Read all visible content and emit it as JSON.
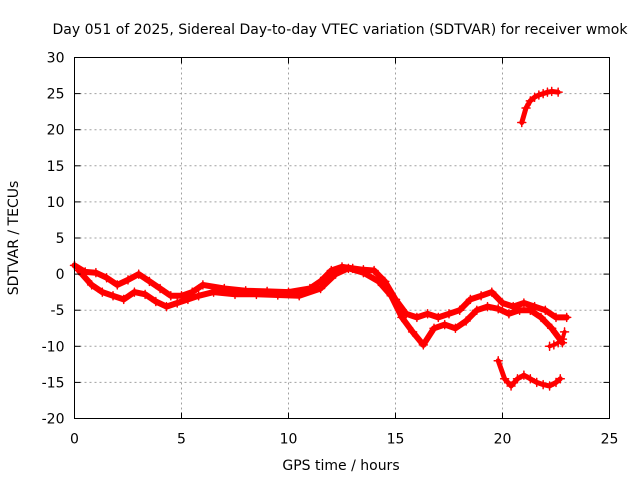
{
  "chart_data": {
    "type": "scatter",
    "title": "Day 051 of 2025, Sidereal Day-to-day VTEC variation (SDTVAR) for receiver wmok",
    "xlabel": "GPS time / hours",
    "ylabel": "SDTVAR / TECUs",
    "xlim": [
      0,
      25
    ],
    "ylim": [
      -20,
      30
    ],
    "xticks": [
      "0",
      "5",
      "10",
      "15",
      "20",
      "25"
    ],
    "yticks": [
      "-20",
      "-15",
      "-10",
      "-5",
      "0",
      "5",
      "10",
      "15",
      "20",
      "25",
      "30"
    ],
    "grid": true,
    "marker": "plus",
    "color": "#ff0000",
    "series": [
      {
        "name": "main-track-upper",
        "x": [
          0,
          0.5,
          1,
          1.5,
          2,
          2.5,
          3,
          3.5,
          4,
          4.5,
          5,
          5.5,
          6,
          7,
          8,
          9,
          10,
          11,
          11.5,
          12,
          12.5,
          13,
          13.5,
          14,
          14.5,
          15,
          15.5,
          16,
          16.5,
          17,
          17.5,
          18,
          18.5,
          19,
          19.5,
          20,
          20.5,
          21,
          21.5,
          22,
          22.5,
          23
        ],
        "y": [
          1.2,
          0.3,
          0.2,
          -0.5,
          -1.5,
          -0.8,
          0.0,
          -1.0,
          -2.0,
          -3.0,
          -3.0,
          -2.5,
          -1.5,
          -2.0,
          -2.3,
          -2.4,
          -2.5,
          -2.0,
          -1.0,
          0.5,
          1.0,
          0.8,
          0.6,
          0.5,
          -1.0,
          -3.5,
          -5.5,
          -6.0,
          -5.5,
          -6.0,
          -5.5,
          -5.0,
          -3.5,
          -3.0,
          -2.5,
          -4.0,
          -4.5,
          -4.0,
          -4.5,
          -5.0,
          -6.0,
          -6.0
        ]
      },
      {
        "name": "main-track-lower",
        "x": [
          0.2,
          0.8,
          1.3,
          1.8,
          2.3,
          2.8,
          3.3,
          3.8,
          4.3,
          4.8,
          5.3,
          5.8,
          6.5,
          7.5,
          8.5,
          9.5,
          10.5,
          11.5,
          12.2,
          12.8,
          13.5,
          14.2,
          14.8,
          15.3,
          15.8,
          16.3,
          16.8,
          17.3,
          17.8,
          18.3,
          18.8,
          19.3,
          19.8,
          20.3,
          20.8,
          21.3,
          21.8,
          22.3,
          22.8
        ],
        "y": [
          0.5,
          -1.5,
          -2.5,
          -3.0,
          -3.5,
          -2.5,
          -2.8,
          -3.8,
          -4.5,
          -4.0,
          -3.5,
          -3.0,
          -2.5,
          -2.8,
          -2.8,
          -2.9,
          -3.0,
          -2.0,
          0.0,
          0.8,
          0.2,
          -1.0,
          -3.0,
          -6.0,
          -8.0,
          -9.8,
          -7.5,
          -7.0,
          -7.5,
          -6.5,
          -5.0,
          -4.5,
          -4.8,
          -5.5,
          -5.0,
          -5.0,
          -6.0,
          -7.5,
          -9.5
        ]
      },
      {
        "name": "lower-arc",
        "x": [
          19.8,
          20.1,
          20.4,
          20.7,
          21.0,
          21.3,
          21.6,
          21.9,
          22.2,
          22.5,
          22.7
        ],
        "y": [
          -12.0,
          -14.5,
          -15.5,
          -14.5,
          -14.0,
          -14.5,
          -15.0,
          -15.3,
          -15.5,
          -15.0,
          -14.5
        ]
      },
      {
        "name": "upper-arc",
        "x": [
          20.9,
          21.1,
          21.3,
          21.5,
          21.7,
          21.9,
          22.1,
          22.3,
          22.6
        ],
        "y": [
          21.0,
          23.0,
          24.0,
          24.5,
          24.8,
          25.0,
          25.2,
          25.3,
          25.2
        ]
      },
      {
        "name": "end-tail",
        "x": [
          22.2,
          22.4,
          22.6,
          22.8,
          22.9
        ],
        "y": [
          -10.0,
          -9.8,
          -9.5,
          -9.0,
          -8.0
        ]
      }
    ]
  }
}
